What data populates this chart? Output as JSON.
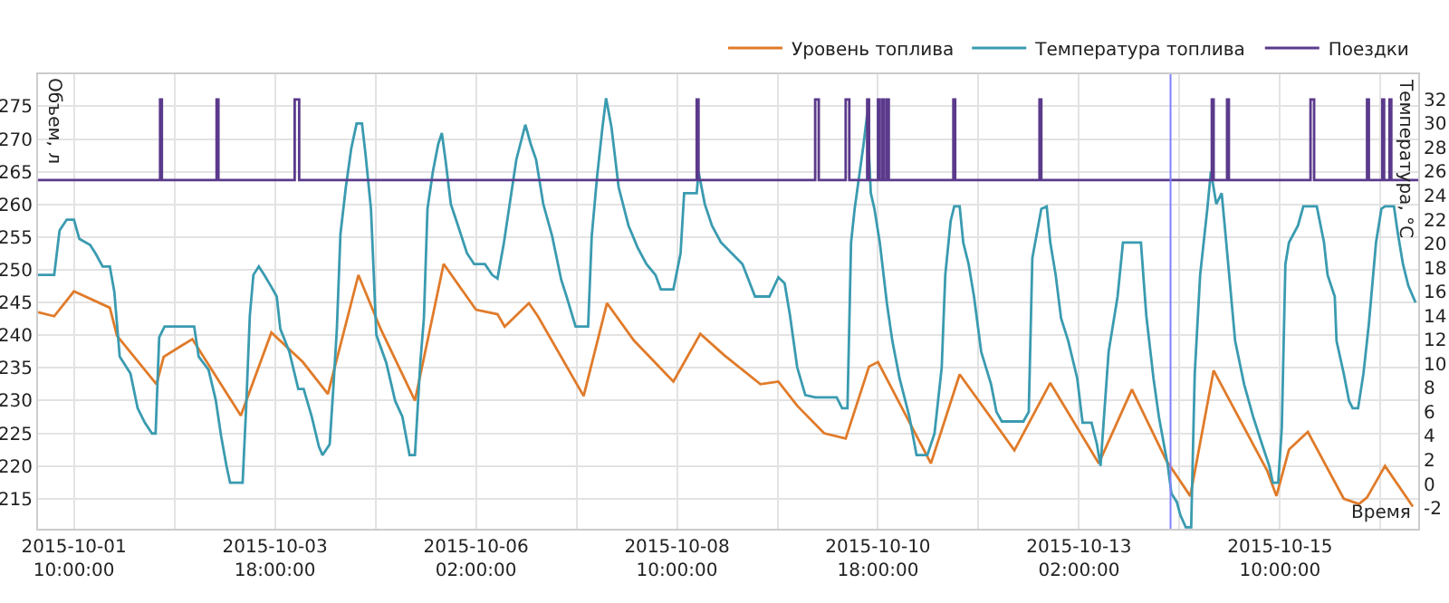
{
  "chart_data": {
    "type": "line",
    "xlabel": "Время",
    "ylabel": "Объем, л",
    "y2label": "Температура, °C",
    "xlim": [
      "2015-10-01T00:00",
      "2015-10-17T00:30"
    ],
    "xticks": [
      {
        "value": "2015-10-01T10:00",
        "label": "2015-10-01\n10:00:00"
      },
      {
        "value": "2015-10-02T14:00",
        "label": null
      },
      {
        "value": "2015-10-03T18:00",
        "label": "2015-10-03\n18:00:00"
      },
      {
        "value": "2015-10-04T22:00",
        "label": null
      },
      {
        "value": "2015-10-06T02:00",
        "label": "2015-10-06\n02:00:00"
      },
      {
        "value": "2015-10-07T06:00",
        "label": null
      },
      {
        "value": "2015-10-08T10:00",
        "label": "2015-10-08\n10:00:00"
      },
      {
        "value": "2015-10-09T14:00",
        "label": null
      },
      {
        "value": "2015-10-10T18:00",
        "label": "2015-10-10\n18:00:00"
      },
      {
        "value": "2015-10-11T22:00",
        "label": null
      },
      {
        "value": "2015-10-13T02:00",
        "label": "2015-10-13\n02:00:00"
      },
      {
        "value": "2015-10-14T06:00",
        "label": null
      },
      {
        "value": "2015-10-15T10:00",
        "label": "2015-10-15\n10:00:00"
      },
      {
        "value": "2015-10-16T14:00",
        "label": null
      }
    ],
    "ylim": [
      210.4,
      279.9
    ],
    "yticks": [
      215,
      220,
      225,
      230,
      235,
      240,
      245,
      250,
      255,
      260,
      265,
      270,
      275
    ],
    "y2lim": [
      -3.73,
      34.1
    ],
    "y2ticks": [
      -2,
      0,
      2,
      4,
      6,
      8,
      10,
      12,
      14,
      16,
      18,
      20,
      22,
      24,
      26,
      28,
      30,
      32
    ],
    "grid": true,
    "legend": "top right",
    "ref_lines": [
      {
        "axis": "x",
        "value": "2015-10-14T03:30",
        "color": "#8080ff"
      }
    ],
    "series": [
      {
        "name": "Уровень топлива",
        "color": "#e07b2a",
        "x": [
          "2015-10-01T00:00",
          "2015-10-01T04:30",
          "2015-10-01T10:00",
          "2015-10-01T20:00",
          "2015-10-01T22:00",
          "2015-10-02T09:00",
          "2015-10-02T11:00",
          "2015-10-02T16:00",
          "2015-10-02T19:00",
          "2015-10-03T08:30",
          "2015-10-03T17:00",
          "2015-10-04T01:45",
          "2015-10-04T08:45",
          "2015-10-04T17:15",
          "2015-10-04T23:30",
          "2015-10-05T09:00",
          "2015-10-05T17:00",
          "2015-10-06T02:00",
          "2015-10-06T08:00",
          "2015-10-06T10:00",
          "2015-10-06T13:00",
          "2015-10-06T16:45",
          "2015-10-06T19:15",
          "2015-10-07T08:00",
          "2015-10-07T14:30",
          "2015-10-07T22:00",
          "2015-10-08T09:00",
          "2015-10-08T16:30",
          "2015-10-08T23:15",
          "2015-10-09T09:15",
          "2015-10-09T14:15",
          "2015-10-09T19:30",
          "2015-10-10T03:00",
          "2015-10-10T09:00",
          "2015-10-10T15:30",
          "2015-10-10T18:00",
          "2015-10-11T08:45",
          "2015-10-11T16:45",
          "2015-10-12T08:00",
          "2015-10-12T18:00",
          "2015-10-13T07:30",
          "2015-10-13T16:45",
          "2015-10-14T02:15",
          "2015-10-14T09:00",
          "2015-10-14T15:30",
          "2015-10-15T06:30",
          "2015-10-15T09:00",
          "2015-10-15T12:30",
          "2015-10-15T17:45",
          "2015-10-16T03:45",
          "2015-10-16T08:00",
          "2015-10-16T10:15",
          "2015-10-16T15:15",
          "2015-10-16T23:00"
        ],
        "values": [
          243.5,
          242.9,
          246.7,
          244.2,
          239.9,
          232.5,
          236.7,
          238.4,
          239.4,
          227.7,
          240.4,
          235.9,
          231.0,
          249.2,
          240.9,
          230.0,
          250.9,
          243.9,
          243.2,
          241.3,
          242.9,
          244.9,
          242.9,
          230.7,
          244.9,
          239.2,
          232.9,
          240.2,
          236.9,
          232.5,
          232.9,
          229.2,
          225.0,
          224.2,
          235.2,
          235.9,
          220.4,
          234.0,
          222.4,
          232.7,
          220.4,
          231.7,
          220.9,
          215.4,
          234.6,
          219.2,
          215.4,
          222.5,
          225.2,
          215.0,
          214.2,
          215.2,
          220.0,
          213.8
        ]
      },
      {
        "name": "Температура топлива",
        "color": "#3a9bb0",
        "type": "line",
        "axis": "y2",
        "x": [
          "2015-10-01T00:00",
          "2015-10-01T04:30",
          "2015-10-01T06:00",
          "2015-10-01T08:00",
          "2015-10-01T10:00",
          "2015-10-01T11:30",
          "2015-10-01T14:30",
          "2015-10-01T16:00",
          "2015-10-01T18:00",
          "2015-10-01T20:00",
          "2015-10-01T21:15",
          "2015-10-01T22:45",
          "2015-10-02T01:45",
          "2015-10-02T03:45",
          "2015-10-02T05:45",
          "2015-10-02T07:45",
          "2015-10-02T08:45",
          "2015-10-02T09:45",
          "2015-10-02T11:15",
          "2015-10-02T19:30",
          "2015-10-02T20:45",
          "2015-10-02T23:30",
          "2015-10-03T01:30",
          "2015-10-03T03:00",
          "2015-10-03T04:30",
          "2015-10-03T05:30",
          "2015-10-03T09:00",
          "2015-10-03T10:00",
          "2015-10-03T11:00",
          "2015-10-03T12:00",
          "2015-10-03T13:30",
          "2015-10-03T15:00",
          "2015-10-03T17:00",
          "2015-10-03T18:30",
          "2015-10-03T19:30",
          "2015-10-03T22:00",
          "2015-10-04T00:30",
          "2015-10-04T02:00",
          "2015-10-04T04:15",
          "2015-10-04T06:15",
          "2015-10-04T07:15",
          "2015-10-04T09:15",
          "2015-10-04T10:15",
          "2015-10-04T11:15",
          "2015-10-04T12:15",
          "2015-10-04T13:45",
          "2015-10-04T15:15",
          "2015-10-04T16:45",
          "2015-10-04T18:15",
          "2015-10-04T19:15",
          "2015-10-04T20:45",
          "2015-10-04T22:15",
          "2015-10-05T01:00",
          "2015-10-05T03:30",
          "2015-10-05T05:30",
          "2015-10-05T07:30",
          "2015-10-05T09:00",
          "2015-10-05T10:30",
          "2015-10-05T11:30",
          "2015-10-05T12:30",
          "2015-10-05T14:00",
          "2015-10-05T15:30",
          "2015-10-05T16:30",
          "2015-10-05T17:30",
          "2015-10-05T19:00",
          "2015-10-05T21:00",
          "2015-10-05T23:30",
          "2015-10-06T01:30",
          "2015-10-06T04:30",
          "2015-10-06T06:30",
          "2015-10-06T08:00",
          "2015-10-06T09:45",
          "2015-10-06T13:15",
          "2015-10-06T15:45",
          "2015-10-06T17:15",
          "2015-10-06T18:45",
          "2015-10-06T20:45",
          "2015-10-06T23:15",
          "2015-10-07T01:45",
          "2015-10-07T03:15",
          "2015-10-07T05:45",
          "2015-10-07T09:15",
          "2015-10-07T10:15",
          "2015-10-07T11:45",
          "2015-10-07T13:15",
          "2015-10-07T14:15",
          "2015-10-07T15:45",
          "2015-10-07T17:45",
          "2015-10-07T20:30",
          "2015-10-07T23:00",
          "2015-10-08T01:30",
          "2015-10-08T04:00",
          "2015-10-08T05:30",
          "2015-10-08T09:00",
          "2015-10-08T11:00",
          "2015-10-08T12:00",
          "2015-10-08T15:30",
          "2015-10-08T16:00",
          "2015-10-08T17:45",
          "2015-10-08T19:45",
          "2015-10-08T22:15",
          "2015-10-09T04:15",
          "2015-10-09T07:45",
          "2015-10-09T11:45",
          "2015-10-09T14:15",
          "2015-10-09T16:00",
          "2015-10-09T17:30",
          "2015-10-09T19:30",
          "2015-10-09T21:45",
          "2015-10-10T00:30",
          "2015-10-10T06:30",
          "2015-10-10T08:00",
          "2015-10-10T09:30",
          "2015-10-10T10:30",
          "2015-10-10T11:30",
          "2015-10-10T14:00",
          "2015-10-10T15:00",
          "2015-10-10T16:00",
          "2015-10-10T17:00",
          "2015-10-10T18:30",
          "2015-10-10T20:30",
          "2015-10-10T22:00",
          "2015-10-11T00:00",
          "2015-10-11T02:45",
          "2015-10-11T04:45",
          "2015-10-11T07:45",
          "2015-10-11T09:45",
          "2015-10-11T11:45",
          "2015-10-11T12:45",
          "2015-10-11T14:15",
          "2015-10-11T15:15",
          "2015-10-11T16:45",
          "2015-10-11T17:45",
          "2015-10-11T19:15",
          "2015-10-11T20:45",
          "2015-10-11T22:45",
          "2015-10-12T01:30",
          "2015-10-12T03:00",
          "2015-10-12T04:30",
          "2015-10-12T10:30",
          "2015-10-12T12:00",
          "2015-10-12T13:00",
          "2015-10-12T15:30",
          "2015-10-12T17:00",
          "2015-10-12T18:00",
          "2015-10-12T19:30",
          "2015-10-12T21:00",
          "2015-10-12T23:00",
          "2015-10-13T01:30",
          "2015-10-13T03:00",
          "2015-10-13T05:30",
          "2015-10-13T07:00",
          "2015-10-13T08:00",
          "2015-10-13T10:15",
          "2015-10-13T12:45",
          "2015-10-13T14:15",
          "2015-10-13T19:15",
          "2015-10-13T20:45",
          "2015-10-13T22:45",
          "2015-10-14T00:15",
          "2015-10-14T02:45",
          "2015-10-14T03:45",
          "2015-10-14T05:15",
          "2015-10-14T06:15",
          "2015-10-14T07:45",
          "2015-10-14T09:15",
          "2015-10-14T10:15",
          "2015-10-14T11:45",
          "2015-10-14T13:45",
          "2015-10-14T14:45",
          "2015-10-14T15:45",
          "2015-10-14T16:15",
          "2015-10-14T17:45",
          "2015-10-14T18:45",
          "2015-10-14T21:30",
          "2015-10-15T00:00",
          "2015-10-15T02:30",
          "2015-10-15T05:00",
          "2015-10-15T07:00",
          "2015-10-15T08:00",
          "2015-10-15T09:30",
          "2015-10-15T10:30",
          "2015-10-15T11:30",
          "2015-10-15T12:30",
          "2015-10-15T15:00",
          "2015-10-15T16:30",
          "2015-10-15T20:15",
          "2015-10-15T22:15",
          "2015-10-15T23:15",
          "2015-10-16T01:15",
          "2015-10-16T01:45",
          "2015-10-16T03:45",
          "2015-10-16T05:15",
          "2015-10-16T06:15",
          "2015-10-16T07:45",
          "2015-10-16T09:15",
          "2015-10-16T10:45",
          "2015-10-16T12:45",
          "2015-10-16T14:15",
          "2015-10-16T15:15",
          "2015-10-16T17:45",
          "2015-10-16T18:45",
          "2015-10-16T20:15",
          "2015-10-16T21:45",
          "2015-10-16T23:45"
        ],
        "values": [
          17.4,
          17.4,
          21.1,
          22.0,
          22.0,
          20.4,
          19.9,
          19.2,
          18.1,
          18.1,
          16.0,
          10.6,
          9.2,
          6.3,
          5.1,
          4.2,
          4.2,
          12.2,
          13.1,
          13.1,
          10.6,
          9.5,
          7.0,
          4.0,
          1.5,
          0.1,
          0.1,
          6.5,
          14.0,
          17.4,
          18.1,
          17.4,
          16.4,
          15.6,
          12.9,
          11.0,
          7.9,
          7.9,
          5.6,
          3.1,
          2.4,
          3.3,
          7.9,
          12.9,
          20.8,
          24.7,
          27.9,
          30.0,
          30.0,
          27.4,
          22.9,
          12.4,
          10.1,
          6.9,
          5.6,
          2.4,
          2.4,
          10.1,
          13.8,
          22.9,
          26.0,
          28.3,
          29.2,
          27.0,
          23.3,
          21.5,
          19.2,
          18.3,
          18.3,
          17.4,
          17.1,
          20.0,
          27.0,
          29.9,
          28.3,
          27.0,
          23.3,
          20.6,
          17.0,
          15.6,
          13.1,
          13.1,
          20.6,
          25.6,
          29.7,
          32.1,
          29.7,
          24.7,
          21.5,
          19.7,
          18.3,
          17.4,
          16.2,
          16.2,
          19.2,
          24.2,
          24.2,
          26.0,
          23.3,
          21.5,
          20.1,
          18.3,
          15.6,
          15.6,
          17.2,
          16.7,
          14.0,
          9.7,
          7.4,
          7.2,
          7.2,
          6.3,
          6.3,
          20.1,
          22.9,
          28.3,
          30.8,
          24.2,
          22.9,
          20.1,
          15.0,
          11.9,
          8.8,
          5.6,
          2.4,
          2.4,
          4.2,
          9.7,
          17.4,
          21.9,
          23.1,
          23.1,
          20.1,
          18.3,
          15.6,
          11.0,
          8.3,
          6.0,
          5.2,
          5.2,
          6.0,
          18.8,
          22.9,
          23.1,
          20.1,
          17.4,
          13.8,
          11.9,
          8.8,
          5.1,
          5.1,
          3.3,
          1.5,
          11.0,
          15.6,
          20.1,
          20.1,
          14.0,
          8.8,
          5.6,
          1.5,
          -0.8,
          -1.5,
          -2.6,
          -3.6,
          -3.6,
          9.2,
          17.4,
          22.9,
          26.0,
          24.2,
          23.3,
          24.2,
          21.0,
          11.9,
          8.3,
          5.6,
          3.3,
          1.5,
          0.1,
          0.1,
          4.7,
          18.3,
          20.1,
          21.5,
          23.1,
          23.1,
          20.1,
          17.4,
          15.6,
          11.9,
          9.2,
          6.9,
          6.3,
          6.3,
          9.2,
          13.3,
          20.1,
          22.9,
          23.1,
          23.1,
          21.0,
          18.3,
          16.5,
          15.1
        ]
      },
      {
        "name": "Поездки",
        "color": "#5b3a8c",
        "type": "step",
        "axis": "y2",
        "x": [
          "2015-10-01T00:00",
          "2015-10-02T10:00",
          "2015-10-02T10:30",
          "2015-10-03T01:45",
          "2015-10-03T02:15",
          "2015-10-03T23:30",
          "2015-10-04T00:45",
          "2015-10-08T15:30",
          "2015-10-08T16:00",
          "2015-10-10T00:30",
          "2015-10-10T01:30",
          "2015-10-10T09:00",
          "2015-10-10T10:00",
          "2015-10-10T15:00",
          "2015-10-10T15:30",
          "2015-10-10T18:00",
          "2015-10-10T18:30",
          "2015-10-10T19:15",
          "2015-10-10T19:45",
          "2015-10-10T20:30",
          "2015-10-10T21:00",
          "2015-10-11T15:00",
          "2015-10-11T15:30",
          "2015-10-12T15:00",
          "2015-10-12T15:30",
          "2015-10-14T15:00",
          "2015-10-14T15:30",
          "2015-10-14T19:15",
          "2015-10-14T19:45",
          "2015-10-15T18:30",
          "2015-10-15T19:30",
          "2015-10-16T10:15",
          "2015-10-16T10:45",
          "2015-10-16T14:30",
          "2015-10-16T15:00",
          "2015-10-16T16:30",
          "2015-10-16T17:00",
          "2015-10-17T00:30"
        ],
        "values": [
          25.3,
          32,
          25.3,
          32,
          25.3,
          32,
          25.3,
          32,
          25.3,
          32,
          25.3,
          32,
          25.3,
          32,
          25.3,
          32,
          25.3,
          32,
          25.3,
          32,
          25.3,
          32,
          25.3,
          32,
          25.3,
          32,
          25.3,
          32,
          25.3,
          32,
          25.3,
          32,
          25.3,
          32,
          25.3,
          32,
          25.3,
          25.3
        ]
      }
    ]
  }
}
